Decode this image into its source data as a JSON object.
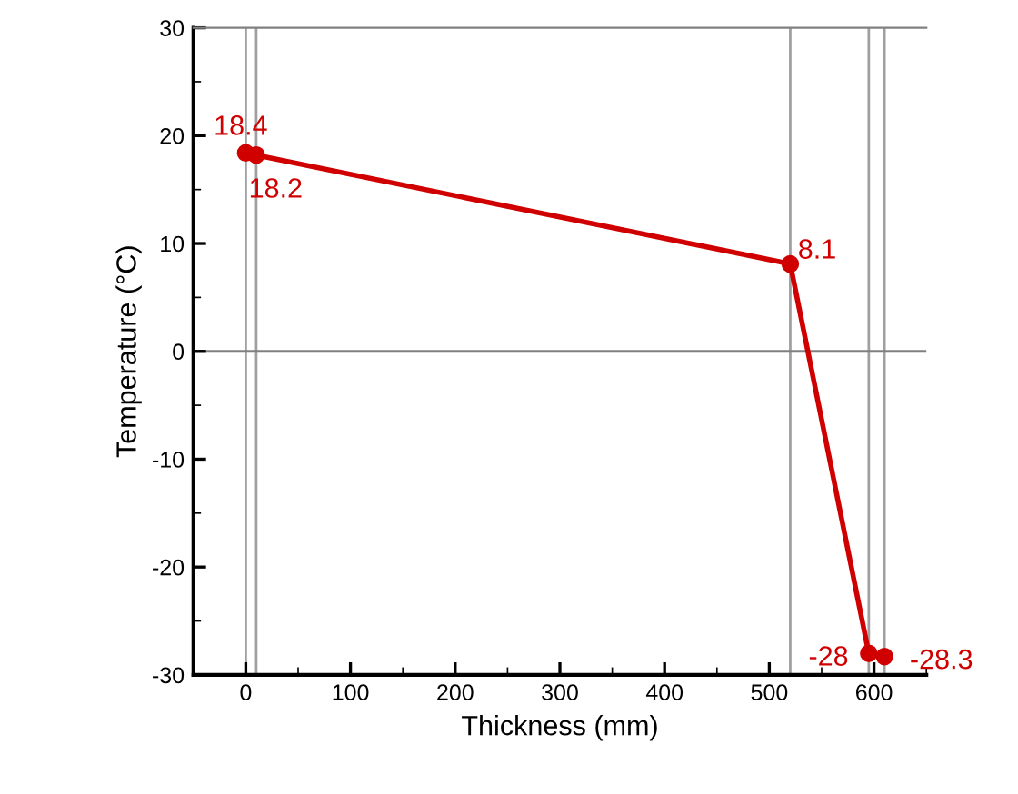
{
  "chart_data": {
    "type": "line",
    "xlabel": "Thickness (mm)",
    "ylabel": "Temperature (°C)",
    "x": [
      0,
      10,
      520,
      595,
      610
    ],
    "series": [
      {
        "color": "#d00000",
        "values": [
          18.4,
          18.2,
          8.1,
          -28,
          -28.3
        ]
      }
    ],
    "xlim": [
      -50,
      650
    ],
    "ylim": [
      -30,
      30
    ],
    "xticks": [
      0,
      100,
      200,
      300,
      400,
      500,
      600
    ],
    "yticks": [
      -30,
      -20,
      -10,
      0,
      10,
      20,
      30
    ],
    "marker": "circle",
    "line_style": "solid",
    "grid": false,
    "legend": false,
    "data_labels": true,
    "ref_lines": [
      {
        "axis": "x",
        "value": 0,
        "color": "#a0a0a0"
      },
      {
        "axis": "x",
        "value": 10,
        "color": "#a0a0a0"
      },
      {
        "axis": "x",
        "value": 520,
        "color": "#a0a0a0"
      },
      {
        "axis": "x",
        "value": 595,
        "color": "#a0a0a0"
      },
      {
        "axis": "x",
        "value": 610,
        "color": "#a0a0a0"
      },
      {
        "axis": "y",
        "value": 0,
        "color": "#808080"
      }
    ]
  }
}
